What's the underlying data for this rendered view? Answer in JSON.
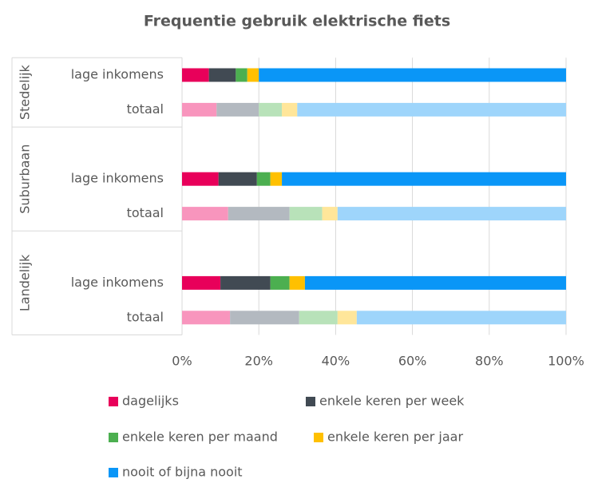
{
  "chart_data": {
    "type": "stacked_barh",
    "title": "Frequentie gebruik elektrische fiets",
    "groups": [
      "Stedelijk",
      "Suburbaan",
      "Landelijk"
    ],
    "categories": [
      "lage inkomens",
      "totaal",
      "lage inkomens",
      "totaal",
      "lage inkomens",
      "totaal"
    ],
    "series": [
      {
        "name": "dagelijks",
        "color": "#e8005a",
        "light_color": "#f895bd",
        "values": [
          7,
          9,
          9.5,
          12,
          10,
          12.5
        ]
      },
      {
        "name": "enkele keren per week",
        "color": "#414a53",
        "light_color": "#b3b9c0",
        "values": [
          7,
          11,
          10,
          16,
          13,
          18
        ]
      },
      {
        "name": "enkele keren per maand",
        "color": "#4caf50",
        "light_color": "#b8e2b9",
        "values": [
          3,
          6,
          3.5,
          8.5,
          5,
          10
        ]
      },
      {
        "name": "enkele keren per jaar",
        "color": "#ffc000",
        "light_color": "#ffe69a",
        "values": [
          3,
          4,
          3,
          4,
          4,
          5
        ]
      },
      {
        "name": "nooit of bijna nooit",
        "color": "#0a96f7",
        "light_color": "#9ed5fb",
        "values": [
          80,
          70,
          74,
          59.5,
          68,
          54.5
        ]
      }
    ],
    "xlim": [
      0,
      100
    ],
    "xticks": [
      {
        "value": 0,
        "label": "0%"
      },
      {
        "value": 20,
        "label": "20%"
      },
      {
        "value": 40,
        "label": "40%"
      },
      {
        "value": 60,
        "label": "60%"
      },
      {
        "value": 80,
        "label": "80%"
      },
      {
        "value": 100,
        "label": "100%"
      }
    ],
    "grid": true
  }
}
